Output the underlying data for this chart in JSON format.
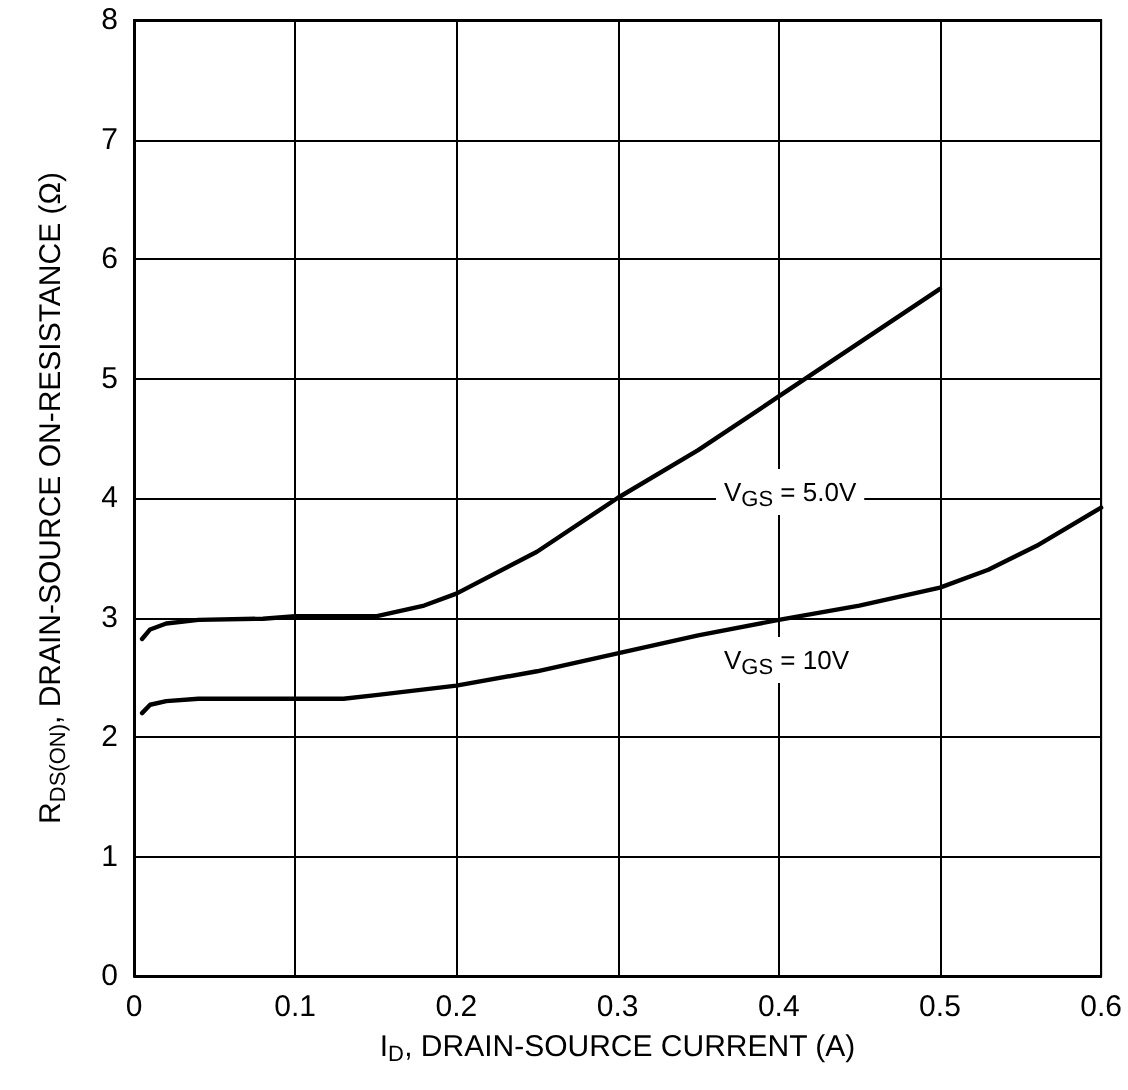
{
  "chart_data": {
    "type": "line",
    "xlabel": "I$_{D}$, DRAIN-SOURCE CURRENT (A)",
    "ylabel": "R$_{DS(ON)}$, DRAIN-SOURCE ON-RESISTANCE (Ω)",
    "series": [
      {
        "color": "#000000",
        "x": [
          0.005,
          0.01,
          0.02,
          0.04,
          0.08,
          0.1,
          0.15,
          0.18,
          0.2,
          0.25,
          0.3,
          0.35,
          0.4,
          0.45,
          0.5
        ],
        "values": [
          2.82,
          2.9,
          2.95,
          2.98,
          2.99,
          3.01,
          3.01,
          3.1,
          3.2,
          3.55,
          4.0,
          4.4,
          4.85,
          5.3,
          5.75
        ]
      },
      {
        "color": "#000000",
        "x": [
          0.005,
          0.01,
          0.02,
          0.04,
          0.1,
          0.13,
          0.15,
          0.2,
          0.25,
          0.3,
          0.35,
          0.4,
          0.45,
          0.5,
          0.53,
          0.56,
          0.6
        ],
        "values": [
          2.2,
          2.27,
          2.3,
          2.32,
          2.32,
          2.32,
          2.35,
          2.43,
          2.55,
          2.7,
          2.85,
          2.98,
          3.1,
          3.25,
          3.4,
          3.6,
          3.92
        ]
      }
    ],
    "annotations": [
      "V$_{GS}$ = 5.0V",
      "V$_{GS}$ = 10V"
    ],
    "xlim": [
      0,
      0.6
    ],
    "xticks": [
      0,
      0.1,
      0.2,
      0.3,
      0.4,
      0.5,
      0.6
    ],
    "ylim": [
      0,
      8
    ],
    "yticks": [
      0,
      1,
      2,
      3,
      4,
      5,
      6,
      7,
      8
    ],
    "grid": true,
    "marker": "none",
    "line_style": "solid"
  }
}
